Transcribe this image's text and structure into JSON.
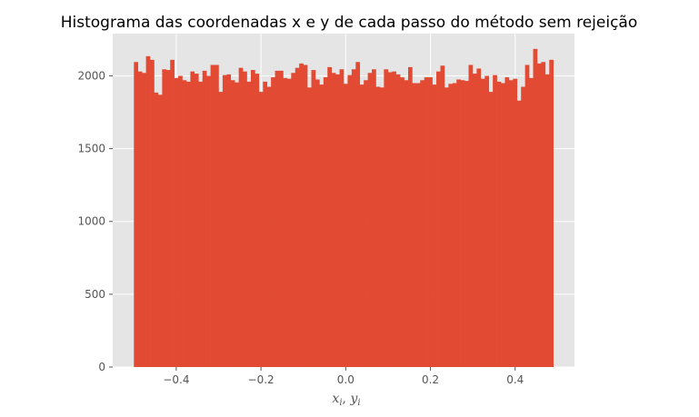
{
  "chart_data": {
    "type": "bar",
    "title": "Histograma das coordenadas x e y de cada passo do método sem rejeição",
    "xlabel": "x_i, y_i",
    "xlabel_display": {
      "a": "x",
      "a_sub": "i",
      "sep": ", ",
      "b": "y",
      "b_sub": "i"
    },
    "ylabel": "",
    "xlim": [
      -0.55,
      0.54
    ],
    "ylim": [
      0,
      2290
    ],
    "xticks": [
      -0.4,
      -0.2,
      0.0,
      0.2,
      0.4
    ],
    "xtick_labels": [
      "−0.4",
      "−0.2",
      "0.0",
      "0.2",
      "0.4"
    ],
    "yticks": [
      0,
      500,
      1000,
      1500,
      2000
    ],
    "ytick_labels": [
      "0",
      "500",
      "1000",
      "1500",
      "2000"
    ],
    "grid": true,
    "bin_start": -0.5,
    "bin_end": 0.49,
    "counts": [
      2095,
      2030,
      2020,
      2135,
      2110,
      1885,
      1870,
      2045,
      2040,
      2110,
      1985,
      2000,
      1970,
      1960,
      2030,
      2015,
      1960,
      2035,
      2000,
      2075,
      2075,
      1890,
      2005,
      2010,
      1970,
      1955,
      2055,
      2030,
      1960,
      2040,
      2015,
      1890,
      1960,
      1925,
      1990,
      2035,
      2035,
      1985,
      1980,
      2020,
      2055,
      2085,
      2075,
      1920,
      2040,
      1975,
      1940,
      1990,
      2060,
      2020,
      2010,
      2045,
      1945,
      2005,
      2045,
      2095,
      1940,
      1970,
      2020,
      2045,
      1925,
      1920,
      2045,
      2025,
      2030,
      2010,
      1990,
      1970,
      2060,
      1950,
      1950,
      1970,
      1990,
      1990,
      1940,
      2030,
      2070,
      1920,
      1945,
      1950,
      1975,
      1970,
      1965,
      2075,
      2015,
      2050,
      1980,
      2000,
      1890,
      2005,
      1960,
      1950,
      1990,
      1970,
      1980,
      1830,
      1925,
      2075,
      1985,
      2185,
      2085,
      2095,
      2010,
      2110
    ],
    "colors": {
      "bar": "#E24A33",
      "plot_bg": "#E5E5E5",
      "grid": "#FFFFFF",
      "tick_text": "#555555",
      "title": "#000000"
    }
  }
}
